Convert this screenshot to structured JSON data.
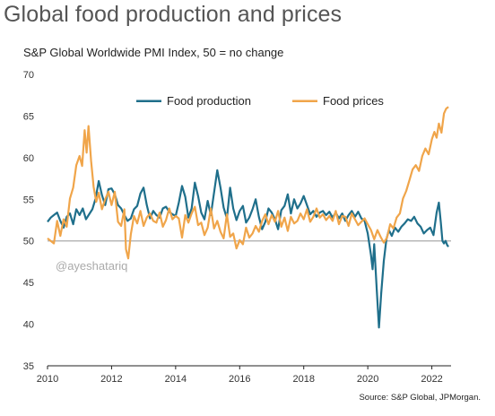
{
  "chart_data": {
    "type": "line",
    "title": "Global food production and prices",
    "subtitle": "S&P Global Worldwide PMI Index, 50 =  no change",
    "source": "Source: S&P Global, JPMorgan.",
    "watermark": "@ayeshatariq",
    "xlim": [
      2010,
      2022.6
    ],
    "ylim": [
      35,
      70
    ],
    "xticks": [
      2010,
      2012,
      2014,
      2016,
      2018,
      2020,
      2022
    ],
    "yticks": [
      35,
      40,
      45,
      50,
      55,
      60,
      65,
      70
    ],
    "reference_line": 50,
    "grid": false,
    "legend": "top-center",
    "series": [
      {
        "name": "Food production",
        "color": "#1f6f8b",
        "points": [
          [
            2010.0,
            52.3
          ],
          [
            2010.1,
            52.8
          ],
          [
            2010.2,
            53.1
          ],
          [
            2010.3,
            53.4
          ],
          [
            2010.4,
            52.4
          ],
          [
            2010.5,
            51.6
          ],
          [
            2010.6,
            52.9
          ],
          [
            2010.7,
            53.3
          ],
          [
            2010.8,
            52.0
          ],
          [
            2010.9,
            53.8
          ],
          [
            2011.0,
            53.1
          ],
          [
            2011.1,
            53.9
          ],
          [
            2011.2,
            52.6
          ],
          [
            2011.3,
            53.2
          ],
          [
            2011.4,
            53.8
          ],
          [
            2011.5,
            55.1
          ],
          [
            2011.6,
            57.2
          ],
          [
            2011.7,
            55.5
          ],
          [
            2011.8,
            54.3
          ],
          [
            2011.9,
            56.2
          ],
          [
            2012.0,
            56.3
          ],
          [
            2012.1,
            55.6
          ],
          [
            2012.2,
            54.3
          ],
          [
            2012.3,
            53.9
          ],
          [
            2012.4,
            53.1
          ],
          [
            2012.5,
            52.4
          ],
          [
            2012.6,
            52.7
          ],
          [
            2012.7,
            53.8
          ],
          [
            2012.8,
            54.2
          ],
          [
            2012.9,
            55.7
          ],
          [
            2013.0,
            56.4
          ],
          [
            2013.1,
            54.3
          ],
          [
            2013.2,
            52.7
          ],
          [
            2013.3,
            53.6
          ],
          [
            2013.4,
            53.1
          ],
          [
            2013.5,
            52.8
          ],
          [
            2013.6,
            53.9
          ],
          [
            2013.7,
            54.1
          ],
          [
            2013.8,
            53.5
          ],
          [
            2013.9,
            53.2
          ],
          [
            2014.0,
            53.0
          ],
          [
            2014.1,
            54.6
          ],
          [
            2014.2,
            56.6
          ],
          [
            2014.3,
            55.3
          ],
          [
            2014.4,
            52.8
          ],
          [
            2014.5,
            53.9
          ],
          [
            2014.6,
            57.0
          ],
          [
            2014.7,
            55.4
          ],
          [
            2014.8,
            53.4
          ],
          [
            2014.9,
            52.6
          ],
          [
            2015.0,
            54.8
          ],
          [
            2015.1,
            53.1
          ],
          [
            2015.2,
            55.8
          ],
          [
            2015.3,
            58.5
          ],
          [
            2015.4,
            56.4
          ],
          [
            2015.5,
            54.0
          ],
          [
            2015.6,
            52.7
          ],
          [
            2015.7,
            56.4
          ],
          [
            2015.8,
            53.9
          ],
          [
            2015.9,
            52.5
          ],
          [
            2016.0,
            53.6
          ],
          [
            2016.1,
            54.2
          ],
          [
            2016.2,
            52.2
          ],
          [
            2016.3,
            52.8
          ],
          [
            2016.4,
            53.8
          ],
          [
            2016.5,
            55.0
          ],
          [
            2016.6,
            52.9
          ],
          [
            2016.7,
            51.4
          ],
          [
            2016.8,
            52.3
          ],
          [
            2016.9,
            53.9
          ],
          [
            2017.0,
            53.4
          ],
          [
            2017.1,
            52.6
          ],
          [
            2017.2,
            51.4
          ],
          [
            2017.3,
            53.7
          ],
          [
            2017.4,
            54.2
          ],
          [
            2017.5,
            55.6
          ],
          [
            2017.6,
            53.3
          ],
          [
            2017.7,
            55.0
          ],
          [
            2017.8,
            53.9
          ],
          [
            2017.9,
            54.5
          ],
          [
            2018.0,
            55.4
          ],
          [
            2018.1,
            54.3
          ],
          [
            2018.2,
            53.2
          ],
          [
            2018.3,
            53.6
          ],
          [
            2018.4,
            52.9
          ],
          [
            2018.5,
            53.4
          ],
          [
            2018.6,
            53.6
          ],
          [
            2018.7,
            53.1
          ],
          [
            2018.8,
            53.5
          ],
          [
            2018.9,
            52.8
          ],
          [
            2019.0,
            53.4
          ],
          [
            2019.1,
            52.7
          ],
          [
            2019.2,
            53.3
          ],
          [
            2019.3,
            52.4
          ],
          [
            2019.4,
            53.1
          ],
          [
            2019.5,
            53.6
          ],
          [
            2019.6,
            52.9
          ],
          [
            2019.7,
            53.5
          ],
          [
            2019.8,
            52.7
          ],
          [
            2019.9,
            52.4
          ],
          [
            2020.0,
            50.9
          ],
          [
            2020.1,
            48.3
          ],
          [
            2020.15,
            46.6
          ],
          [
            2020.2,
            49.6
          ],
          [
            2020.28,
            44.2
          ],
          [
            2020.35,
            39.6
          ],
          [
            2020.42,
            43.7
          ],
          [
            2020.5,
            47.6
          ],
          [
            2020.58,
            50.2
          ],
          [
            2020.66,
            51.3
          ],
          [
            2020.75,
            50.6
          ],
          [
            2020.85,
            51.6
          ],
          [
            2020.95,
            51.1
          ],
          [
            2021.05,
            51.7
          ],
          [
            2021.15,
            52.1
          ],
          [
            2021.25,
            52.6
          ],
          [
            2021.35,
            52.4
          ],
          [
            2021.45,
            52.9
          ],
          [
            2021.55,
            52.1
          ],
          [
            2021.65,
            51.7
          ],
          [
            2021.75,
            50.9
          ],
          [
            2021.85,
            51.3
          ],
          [
            2021.95,
            51.6
          ],
          [
            2022.05,
            50.7
          ],
          [
            2022.15,
            53.4
          ],
          [
            2022.22,
            54.6
          ],
          [
            2022.28,
            52.2
          ],
          [
            2022.33,
            50.0
          ],
          [
            2022.38,
            49.7
          ],
          [
            2022.43,
            50.0
          ],
          [
            2022.48,
            49.5
          ],
          [
            2022.52,
            49.3
          ]
        ]
      },
      {
        "name": "Food prices",
        "color": "#f0a54a",
        "points": [
          [
            2010.0,
            50.3
          ],
          [
            2010.1,
            50.0
          ],
          [
            2010.2,
            49.7
          ],
          [
            2010.3,
            52.4
          ],
          [
            2010.4,
            50.6
          ],
          [
            2010.5,
            52.6
          ],
          [
            2010.6,
            51.7
          ],
          [
            2010.7,
            55.1
          ],
          [
            2010.8,
            56.4
          ],
          [
            2010.9,
            59.1
          ],
          [
            2011.0,
            60.2
          ],
          [
            2011.08,
            59.0
          ],
          [
            2011.16,
            63.3
          ],
          [
            2011.22,
            60.6
          ],
          [
            2011.28,
            63.8
          ],
          [
            2011.36,
            59.6
          ],
          [
            2011.44,
            56.5
          ],
          [
            2011.52,
            54.7
          ],
          [
            2011.6,
            55.8
          ],
          [
            2011.7,
            53.8
          ],
          [
            2011.8,
            55.0
          ],
          [
            2011.9,
            55.9
          ],
          [
            2012.0,
            54.3
          ],
          [
            2012.1,
            55.9
          ],
          [
            2012.2,
            52.3
          ],
          [
            2012.3,
            51.8
          ],
          [
            2012.4,
            53.8
          ],
          [
            2012.45,
            49.0
          ],
          [
            2012.52,
            47.9
          ],
          [
            2012.6,
            50.8
          ],
          [
            2012.7,
            53.0
          ],
          [
            2012.8,
            52.1
          ],
          [
            2012.9,
            53.6
          ],
          [
            2013.0,
            51.8
          ],
          [
            2013.1,
            52.8
          ],
          [
            2013.2,
            53.3
          ],
          [
            2013.3,
            52.4
          ],
          [
            2013.4,
            52.2
          ],
          [
            2013.5,
            53.4
          ],
          [
            2013.6,
            51.7
          ],
          [
            2013.7,
            52.5
          ],
          [
            2013.8,
            53.9
          ],
          [
            2013.9,
            52.6
          ],
          [
            2014.0,
            53.0
          ],
          [
            2014.1,
            52.7
          ],
          [
            2014.2,
            50.4
          ],
          [
            2014.3,
            53.1
          ],
          [
            2014.4,
            52.2
          ],
          [
            2014.5,
            53.3
          ],
          [
            2014.6,
            54.1
          ],
          [
            2014.7,
            51.9
          ],
          [
            2014.8,
            52.2
          ],
          [
            2014.9,
            50.7
          ],
          [
            2015.0,
            51.6
          ],
          [
            2015.1,
            53.9
          ],
          [
            2015.2,
            51.5
          ],
          [
            2015.3,
            52.4
          ],
          [
            2015.4,
            51.1
          ],
          [
            2015.5,
            50.3
          ],
          [
            2015.6,
            53.2
          ],
          [
            2015.7,
            50.5
          ],
          [
            2015.8,
            50.9
          ],
          [
            2015.9,
            49.1
          ],
          [
            2016.0,
            50.1
          ],
          [
            2016.1,
            49.6
          ],
          [
            2016.2,
            51.6
          ],
          [
            2016.3,
            50.4
          ],
          [
            2016.4,
            50.9
          ],
          [
            2016.5,
            51.8
          ],
          [
            2016.6,
            51.1
          ],
          [
            2016.7,
            52.4
          ],
          [
            2016.8,
            53.2
          ],
          [
            2016.9,
            52.0
          ],
          [
            2017.0,
            53.1
          ],
          [
            2017.1,
            52.3
          ],
          [
            2017.2,
            53.6
          ],
          [
            2017.3,
            51.7
          ],
          [
            2017.4,
            52.8
          ],
          [
            2017.5,
            51.2
          ],
          [
            2017.6,
            52.9
          ],
          [
            2017.7,
            52.1
          ],
          [
            2017.8,
            52.4
          ],
          [
            2017.9,
            53.3
          ],
          [
            2018.0,
            52.6
          ],
          [
            2018.1,
            53.8
          ],
          [
            2018.2,
            52.3
          ],
          [
            2018.3,
            52.9
          ],
          [
            2018.4,
            53.9
          ],
          [
            2018.5,
            52.8
          ],
          [
            2018.6,
            53.2
          ],
          [
            2018.7,
            52.5
          ],
          [
            2018.8,
            53.0
          ],
          [
            2018.9,
            52.4
          ],
          [
            2019.0,
            53.6
          ],
          [
            2019.1,
            52.0
          ],
          [
            2019.2,
            53.0
          ],
          [
            2019.3,
            52.9
          ],
          [
            2019.4,
            51.8
          ],
          [
            2019.5,
            53.3
          ],
          [
            2019.6,
            52.6
          ],
          [
            2019.7,
            51.9
          ],
          [
            2019.8,
            52.3
          ],
          [
            2019.9,
            52.7
          ],
          [
            2020.0,
            52.0
          ],
          [
            2020.1,
            51.3
          ],
          [
            2020.2,
            50.2
          ],
          [
            2020.3,
            51.3
          ],
          [
            2020.4,
            50.5
          ],
          [
            2020.5,
            49.8
          ],
          [
            2020.6,
            50.4
          ],
          [
            2020.7,
            52.0
          ],
          [
            2020.8,
            51.5
          ],
          [
            2020.9,
            52.8
          ],
          [
            2021.0,
            53.3
          ],
          [
            2021.1,
            55.1
          ],
          [
            2021.2,
            56.0
          ],
          [
            2021.3,
            57.3
          ],
          [
            2021.4,
            58.6
          ],
          [
            2021.5,
            59.1
          ],
          [
            2021.6,
            58.4
          ],
          [
            2021.7,
            60.2
          ],
          [
            2021.8,
            61.1
          ],
          [
            2021.9,
            60.4
          ],
          [
            2022.0,
            62.2
          ],
          [
            2022.08,
            63.1
          ],
          [
            2022.15,
            62.4
          ],
          [
            2022.22,
            64.1
          ],
          [
            2022.3,
            63.0
          ],
          [
            2022.38,
            65.3
          ],
          [
            2022.45,
            65.9
          ],
          [
            2022.52,
            66.1
          ]
        ]
      }
    ]
  }
}
